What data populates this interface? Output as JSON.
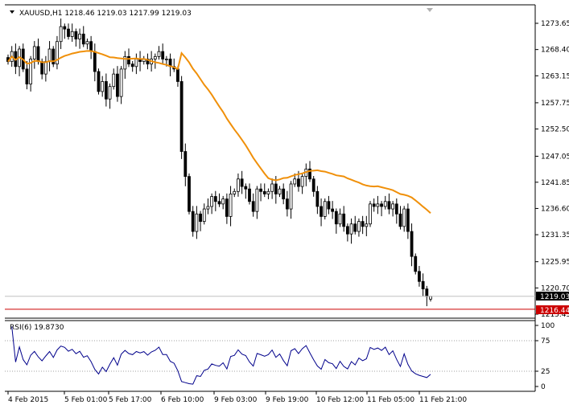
{
  "header": {
    "symbol_text": "XAUUSD,H1  1218.46 1219.03 1217.99 1219.03"
  },
  "rsi_header": {
    "label_text": "RSI(6) 19.8730"
  },
  "colors": {
    "background": "#ffffff",
    "candle": "#000000",
    "ma_line": "#f0900a",
    "rsi_line": "#00008b",
    "bid_line": "#c0c0c0",
    "support_line": "#cc0000",
    "support_label_bg": "#cc0000",
    "current_label_bg": "#000000",
    "grid_dotted": "#a0a0a0"
  },
  "chart_data": [
    {
      "type": "candlestick",
      "title": "XAUUSD,H1",
      "symbol": "XAUUSD",
      "timeframe": "H1",
      "last_bar": {
        "open": 1218.46,
        "high": 1219.03,
        "low": 1217.99,
        "close": 1219.03
      },
      "ylim": [
        1213.45,
        1278.0
      ],
      "y_ticks": [
        "1273.65",
        "1268.40",
        "1263.15",
        "1257.75",
        "1252.50",
        "1247.05",
        "1241.85",
        "1236.60",
        "1231.35",
        "1225.95",
        "1220.70",
        "1215.45"
      ],
      "x_ticks": [
        "4 Feb 2015",
        "5 Feb 01:00",
        "5 Feb 17:00",
        "6 Feb 10:00",
        "9 Feb 03:00",
        "9 Feb 19:00",
        "10 Feb 12:00",
        "11 Feb 05:00",
        "11 Feb 21:00"
      ],
      "price_labels": {
        "current": "1219.03",
        "support": "1216.44"
      },
      "horizontal_lines": [
        {
          "name": "current-price",
          "value": 1219.03
        },
        {
          "name": "support",
          "value": 1216.44
        }
      ],
      "close": [
        1266.0,
        1268.0,
        1265.0,
        1268.5,
        1264.5,
        1261.5,
        1266.5,
        1269.0,
        1266.0,
        1263.5,
        1266.0,
        1268.5,
        1265.5,
        1270.0,
        1273.0,
        1272.5,
        1271.0,
        1272.0,
        1270.5,
        1271.5,
        1269.5,
        1270.0,
        1268.0,
        1264.0,
        1260.0,
        1262.0,
        1258.5,
        1261.0,
        1263.5,
        1259.0,
        1264.5,
        1267.0,
        1265.5,
        1265.0,
        1266.5,
        1266.0,
        1266.5,
        1265.5,
        1266.5,
        1267.0,
        1268.0,
        1266.5,
        1266.5,
        1265.0,
        1264.5,
        1262.0,
        1248.0,
        1243.0,
        1236.0,
        1232.0,
        1235.5,
        1234.0,
        1236.5,
        1237.0,
        1239.0,
        1238.0,
        1237.5,
        1238.5,
        1235.0,
        1239.5,
        1240.0,
        1242.5,
        1241.0,
        1240.5,
        1238.0,
        1236.0,
        1240.5,
        1240.0,
        1239.5,
        1240.0,
        1241.5,
        1239.5,
        1240.5,
        1238.5,
        1236.5,
        1241.5,
        1242.5,
        1241.0,
        1243.0,
        1244.5,
        1242.5,
        1240.0,
        1237.0,
        1235.0,
        1238.0,
        1236.5,
        1236.0,
        1233.5,
        1235.5,
        1233.0,
        1231.5,
        1233.5,
        1232.0,
        1234.0,
        1233.0,
        1233.5,
        1237.5,
        1237.0,
        1237.5,
        1237.0,
        1238.0,
        1236.5,
        1237.5,
        1235.5,
        1233.0,
        1236.5,
        1232.0,
        1227.0,
        1224.0,
        1222.0,
        1220.5,
        1219.0,
        1219.03
      ],
      "ma_series_note_hidden": "",
      "panels": [
        {
          "name": "RSI",
          "label": "RSI(6) 19.8730",
          "period": 6,
          "last_value": 19.873,
          "ylim": [
            0,
            100
          ],
          "y_ticks": [
            "100",
            "75",
            "25",
            "0"
          ]
        }
      ]
    }
  ]
}
